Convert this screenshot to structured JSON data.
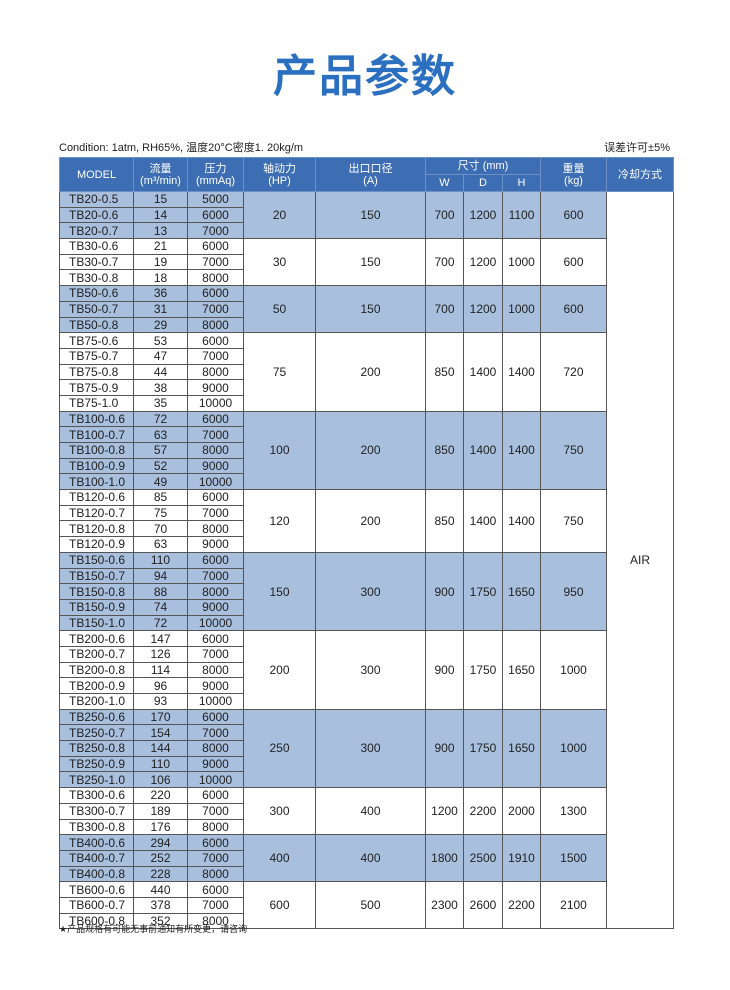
{
  "title": "产品参数",
  "condition": "Condition: 1atm, RH65%, 温度20°C密度1. 20kg/m",
  "tolerance": "误差许可±5%",
  "headers": {
    "model": "MODEL",
    "flow": [
      "流量",
      "(m³/min)"
    ],
    "pressure": [
      "压力",
      "(mmAq)"
    ],
    "power": [
      "轴动力",
      "(HP)"
    ],
    "outlet": [
      "出口口径",
      "(A)"
    ],
    "size": "尺寸 (mm)",
    "w": "W",
    "d": "D",
    "h": "H",
    "weight": [
      "重量",
      "(kg)"
    ],
    "cooling": "冷却方式"
  },
  "cooling_value": "AIR",
  "colors": {
    "header": "#3d6db3",
    "shade": "#a8bfde",
    "title": "#2b6fc0"
  },
  "groups": [
    {
      "hp": "20",
      "outlet": "150",
      "w": "700",
      "d": "1200",
      "h": "1100",
      "kg": "600",
      "rows": [
        [
          "TB20-0.5",
          "15",
          "5000"
        ],
        [
          "TB20-0.6",
          "14",
          "6000"
        ],
        [
          "TB20-0.7",
          "13",
          "7000"
        ]
      ]
    },
    {
      "hp": "30",
      "outlet": "150",
      "w": "700",
      "d": "1200",
      "h": "1000",
      "kg": "600",
      "rows": [
        [
          "TB30-0.6",
          "21",
          "6000"
        ],
        [
          "TB30-0.7",
          "19",
          "7000"
        ],
        [
          "TB30-0.8",
          "18",
          "8000"
        ]
      ]
    },
    {
      "hp": "50",
      "outlet": "150",
      "w": "700",
      "d": "1200",
      "h": "1000",
      "kg": "600",
      "rows": [
        [
          "TB50-0.6",
          "36",
          "6000"
        ],
        [
          "TB50-0.7",
          "31",
          "7000"
        ],
        [
          "TB50-0.8",
          "29",
          "8000"
        ]
      ]
    },
    {
      "hp": "75",
      "outlet": "200",
      "w": "850",
      "d": "1400",
      "h": "1400",
      "kg": "720",
      "rows": [
        [
          "TB75-0.6",
          "53",
          "6000"
        ],
        [
          "TB75-0.7",
          "47",
          "7000"
        ],
        [
          "TB75-0.8",
          "44",
          "8000"
        ],
        [
          "TB75-0.9",
          "38",
          "9000"
        ],
        [
          "TB75-1.0",
          "35",
          "10000"
        ]
      ]
    },
    {
      "hp": "100",
      "outlet": "200",
      "w": "850",
      "d": "1400",
      "h": "1400",
      "kg": "750",
      "rows": [
        [
          "TB100-0.6",
          "72",
          "6000"
        ],
        [
          "TB100-0.7",
          "63",
          "7000"
        ],
        [
          "TB100-0.8",
          "57",
          "8000"
        ],
        [
          "TB100-0.9",
          "52",
          "9000"
        ],
        [
          "TB100-1.0",
          "49",
          "10000"
        ]
      ]
    },
    {
      "hp": "120",
      "outlet": "200",
      "w": "850",
      "d": "1400",
      "h": "1400",
      "kg": "750",
      "rows": [
        [
          "TB120-0.6",
          "85",
          "6000"
        ],
        [
          "TB120-0.7",
          "75",
          "7000"
        ],
        [
          "TB120-0.8",
          "70",
          "8000"
        ],
        [
          "TB120-0.9",
          "63",
          "9000"
        ]
      ]
    },
    {
      "hp": "150",
      "outlet": "300",
      "w": "900",
      "d": "1750",
      "h": "1650",
      "kg": "950",
      "rows": [
        [
          "TB150-0.6",
          "110",
          "6000"
        ],
        [
          "TB150-0.7",
          "94",
          "7000"
        ],
        [
          "TB150-0.8",
          "88",
          "8000"
        ],
        [
          "TB150-0.9",
          "74",
          "9000"
        ],
        [
          "TB150-1.0",
          "72",
          "10000"
        ]
      ]
    },
    {
      "hp": "200",
      "outlet": "300",
      "w": "900",
      "d": "1750",
      "h": "1650",
      "kg": "1000",
      "rows": [
        [
          "TB200-0.6",
          "147",
          "6000"
        ],
        [
          "TB200-0.7",
          "126",
          "7000"
        ],
        [
          "TB200-0.8",
          "114",
          "8000"
        ],
        [
          "TB200-0.9",
          "96",
          "9000"
        ],
        [
          "TB200-1.0",
          "93",
          "10000"
        ]
      ]
    },
    {
      "hp": "250",
      "outlet": "300",
      "w": "900",
      "d": "1750",
      "h": "1650",
      "kg": "1000",
      "rows": [
        [
          "TB250-0.6",
          "170",
          "6000"
        ],
        [
          "TB250-0.7",
          "154",
          "7000"
        ],
        [
          "TB250-0.8",
          "144",
          "8000"
        ],
        [
          "TB250-0.9",
          "110",
          "9000"
        ],
        [
          "TB250-1.0",
          "106",
          "10000"
        ]
      ]
    },
    {
      "hp": "300",
      "outlet": "400",
      "w": "1200",
      "d": "2200",
      "h": "2000",
      "kg": "1300",
      "rows": [
        [
          "TB300-0.6",
          "220",
          "6000"
        ],
        [
          "TB300-0.7",
          "189",
          "7000"
        ],
        [
          "TB300-0.8",
          "176",
          "8000"
        ]
      ]
    },
    {
      "hp": "400",
      "outlet": "400",
      "w": "1800",
      "d": "2500",
      "h": "1910",
      "kg": "1500",
      "rows": [
        [
          "TB400-0.6",
          "294",
          "6000"
        ],
        [
          "TB400-0.7",
          "252",
          "7000"
        ],
        [
          "TB400-0.8",
          "228",
          "8000"
        ]
      ]
    },
    {
      "hp": "600",
      "outlet": "500",
      "w": "2300",
      "d": "2600",
      "h": "2200",
      "kg": "2100",
      "rows": [
        [
          "TB600-0.6",
          "440",
          "6000"
        ],
        [
          "TB600-0.7",
          "378",
          "7000"
        ],
        [
          "TB600-0.8",
          "352",
          "8000"
        ]
      ]
    }
  ],
  "footnote": "★产品规格有可能无事前通知有所变更，请咨询"
}
